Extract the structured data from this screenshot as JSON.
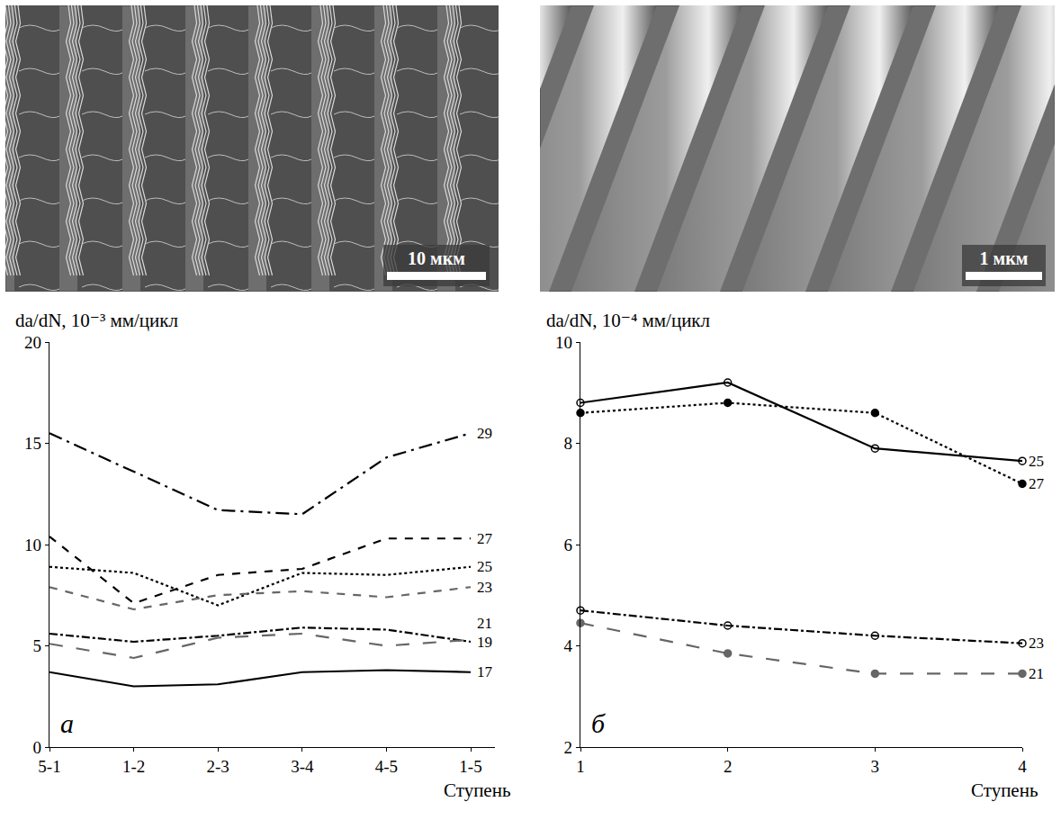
{
  "micrographs": [
    {
      "scale_label": "10 мкм"
    },
    {
      "scale_label": "1 мкм"
    }
  ],
  "chart_data": [
    {
      "type": "line",
      "panel_label": "а",
      "y_label": "da/dN, 10⁻³ мм/цикл",
      "x_label": "Ступень",
      "categories": [
        "5-1",
        "1-2",
        "2-3",
        "3-4",
        "4-5",
        "1-5"
      ],
      "ylim": [
        0,
        20
      ],
      "yticks": [
        0,
        5,
        10,
        15,
        20
      ],
      "grid": false,
      "series": [
        {
          "name": "29",
          "color": "#000000",
          "line_style": "longdashdot",
          "values": [
            15.5,
            13.6,
            11.7,
            11.5,
            14.3,
            15.5
          ]
        },
        {
          "name": "27",
          "color": "#000000",
          "line_style": "dash",
          "values": [
            10.4,
            7.1,
            8.5,
            8.8,
            10.3,
            10.3
          ]
        },
        {
          "name": "25",
          "color": "#000000",
          "line_style": "dot",
          "values": [
            8.9,
            8.6,
            7.0,
            8.6,
            8.5,
            8.9
          ]
        },
        {
          "name": "23",
          "color": "#666666",
          "line_style": "dash",
          "values": [
            7.9,
            6.8,
            7.5,
            7.7,
            7.4,
            7.9
          ]
        },
        {
          "name": "19",
          "color": "#000000",
          "line_style": "dashdot",
          "values": [
            5.6,
            5.2,
            5.5,
            5.9,
            5.8,
            5.2
          ]
        },
        {
          "name": "21",
          "color": "#666666",
          "line_style": "longdash",
          "values": [
            5.1,
            4.4,
            5.4,
            5.6,
            5.0,
            5.3
          ]
        },
        {
          "name": "17",
          "color": "#000000",
          "line_style": "solid",
          "values": [
            3.7,
            3.0,
            3.1,
            3.7,
            3.8,
            3.7
          ]
        }
      ]
    },
    {
      "type": "line",
      "panel_label": "б",
      "y_label": "da/dN, 10⁻⁴ мм/цикл",
      "x_label": "Ступень",
      "x": [
        1,
        2,
        3,
        4
      ],
      "xlim": [
        1,
        4
      ],
      "xticks": [
        1,
        2,
        3,
        4
      ],
      "ylim": [
        2,
        10
      ],
      "yticks": [
        2,
        4,
        6,
        8,
        10
      ],
      "grid": false,
      "series": [
        {
          "name": "25",
          "color": "#000000",
          "line_style": "solid",
          "marker": "circle-open",
          "values": [
            8.8,
            9.2,
            7.9,
            7.65
          ]
        },
        {
          "name": "27",
          "color": "#000000",
          "line_style": "dot",
          "marker": "circle",
          "values": [
            8.6,
            8.8,
            8.6,
            7.2
          ]
        },
        {
          "name": "23",
          "color": "#000000",
          "line_style": "dashdot",
          "marker": "circle-open",
          "values": [
            4.7,
            4.4,
            4.2,
            4.05
          ]
        },
        {
          "name": "21",
          "color": "#666666",
          "line_style": "longdash",
          "marker": "circle",
          "values": [
            4.45,
            3.85,
            3.45,
            3.45
          ]
        }
      ]
    }
  ]
}
